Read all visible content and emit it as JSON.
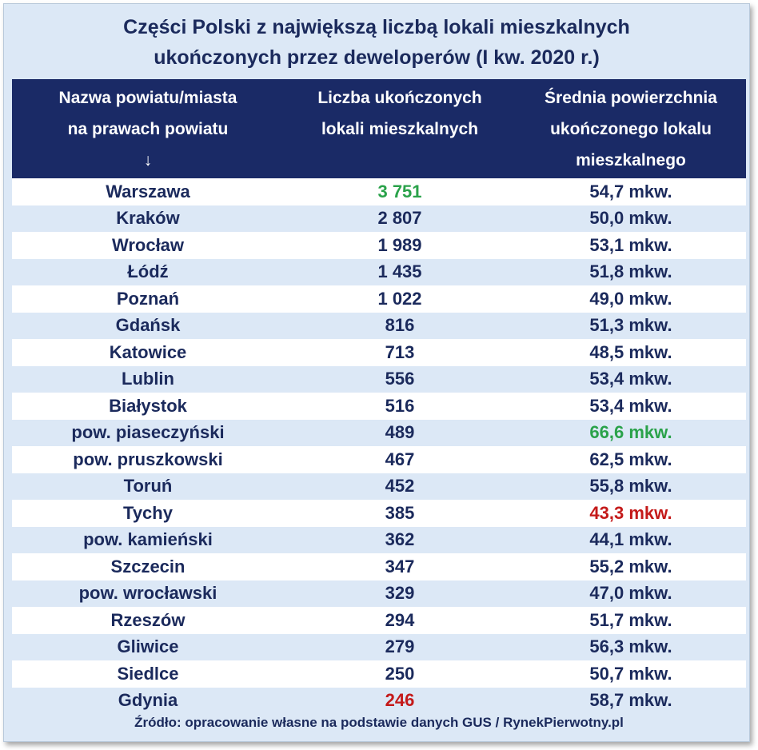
{
  "title_line1": "Części Polski z największą liczbą lokali mieszkalnych",
  "title_line2": "ukończonych przez deweloperów (I kw. 2020 r.)",
  "headers": {
    "col1_line1": "Nazwa powiatu/miasta",
    "col1_line2": "na prawach powiatu",
    "col1_line3": "↓",
    "col2_line1": "Liczba ukończonych",
    "col2_line2": "lokali mieszkalnych",
    "col3_line1": "Średnia powierzchnia",
    "col3_line2": "ukończonego lokalu",
    "col3_line3": "mieszkalnego"
  },
  "colors": {
    "header_bg": "#1a2a66",
    "row_alt": "#dce8f6",
    "text": "#1b2a5c",
    "highlight_max": "#2aa24a",
    "highlight_min": "#c41a1a"
  },
  "chart_data": {
    "type": "table",
    "columns": [
      "Nazwa powiatu/miasta na prawach powiatu",
      "Liczba ukończonych lokali mieszkalnych",
      "Średnia powierzchnia ukończonego lokalu mieszkalnego"
    ],
    "rows": [
      {
        "name": "Warszawa",
        "count": "3 751",
        "area": "54,7 mkw.",
        "count_hl": "max",
        "area_hl": ""
      },
      {
        "name": "Kraków",
        "count": "2 807",
        "area": "50,0 mkw.",
        "count_hl": "",
        "area_hl": ""
      },
      {
        "name": "Wrocław",
        "count": "1 989",
        "area": "53,1 mkw.",
        "count_hl": "",
        "area_hl": ""
      },
      {
        "name": "Łódź",
        "count": "1 435",
        "area": "51,8 mkw.",
        "count_hl": "",
        "area_hl": ""
      },
      {
        "name": "Poznań",
        "count": "1 022",
        "area": "49,0 mkw.",
        "count_hl": "",
        "area_hl": ""
      },
      {
        "name": "Gdańsk",
        "count": "816",
        "area": "51,3 mkw.",
        "count_hl": "",
        "area_hl": ""
      },
      {
        "name": "Katowice",
        "count": "713",
        "area": "48,5 mkw.",
        "count_hl": "",
        "area_hl": ""
      },
      {
        "name": "Lublin",
        "count": "556",
        "area": "53,4 mkw.",
        "count_hl": "",
        "area_hl": ""
      },
      {
        "name": "Białystok",
        "count": "516",
        "area": "53,4 mkw.",
        "count_hl": "",
        "area_hl": ""
      },
      {
        "name": "pow. piaseczyński",
        "count": "489",
        "area": "66,6 mkw.",
        "count_hl": "",
        "area_hl": "max"
      },
      {
        "name": "pow. pruszkowski",
        "count": "467",
        "area": "62,5 mkw.",
        "count_hl": "",
        "area_hl": ""
      },
      {
        "name": "Toruń",
        "count": "452",
        "area": "55,8 mkw.",
        "count_hl": "",
        "area_hl": ""
      },
      {
        "name": "Tychy",
        "count": "385",
        "area": "43,3 mkw.",
        "count_hl": "",
        "area_hl": "min"
      },
      {
        "name": "pow. kamieński",
        "count": "362",
        "area": "44,1 mkw.",
        "count_hl": "",
        "area_hl": ""
      },
      {
        "name": "Szczecin",
        "count": "347",
        "area": "55,2 mkw.",
        "count_hl": "",
        "area_hl": ""
      },
      {
        "name": "pow. wrocławski",
        "count": "329",
        "area": "47,0 mkw.",
        "count_hl": "",
        "area_hl": ""
      },
      {
        "name": "Rzeszów",
        "count": "294",
        "area": "51,7 mkw.",
        "count_hl": "",
        "area_hl": ""
      },
      {
        "name": "Gliwice",
        "count": "279",
        "area": "56,3 mkw.",
        "count_hl": "",
        "area_hl": ""
      },
      {
        "name": "Siedlce",
        "count": "250",
        "area": "50,7 mkw.",
        "count_hl": "",
        "area_hl": ""
      },
      {
        "name": "Gdynia",
        "count": "246",
        "area": "58,7 mkw.",
        "count_hl": "min",
        "area_hl": ""
      }
    ]
  },
  "source": "Źródło: opracowanie własne na podstawie danych GUS / RynekPierwotny.pl"
}
